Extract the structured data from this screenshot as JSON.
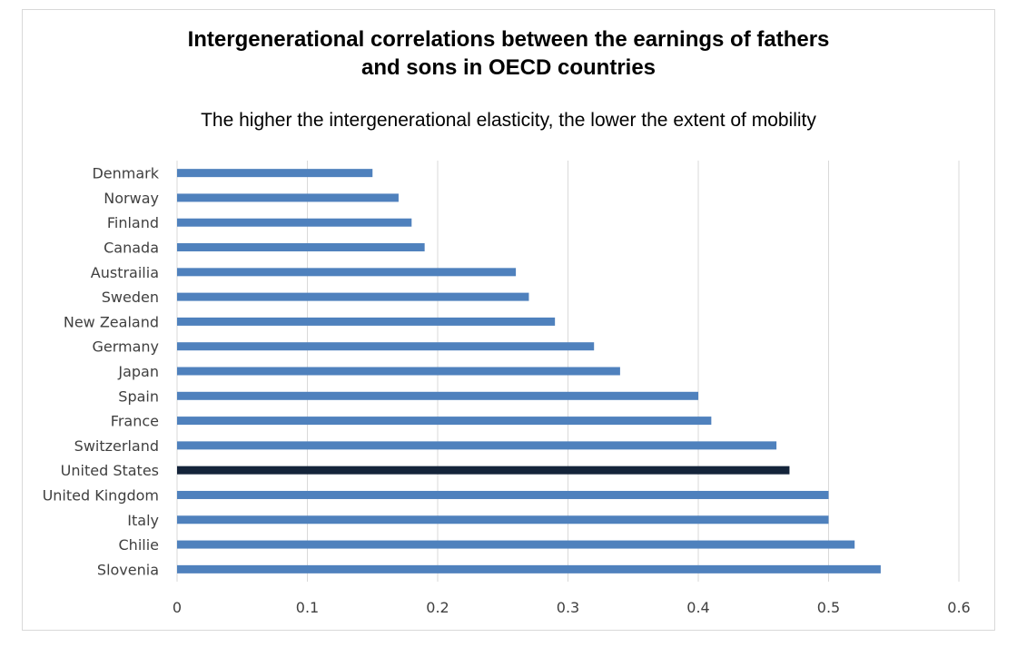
{
  "chart_data": {
    "type": "bar",
    "orientation": "horizontal",
    "title_line1": "Intergenerational correlations between the earnings of fathers",
    "title_line2": "and sons in OECD countries",
    "subtitle": "The higher the intergenerational elasticity, the lower the extent of mobility",
    "categories": [
      "Denmark",
      "Norway",
      "Finland",
      "Canada",
      "Austrailia",
      "Sweden",
      "New Zealand",
      "Germany",
      "Japan",
      "Spain",
      "France",
      "Switzerland",
      "United States",
      "United Kingdom",
      "Italy",
      "Chilie",
      "Slovenia"
    ],
    "values": [
      0.15,
      0.17,
      0.18,
      0.19,
      0.26,
      0.27,
      0.29,
      0.32,
      0.34,
      0.4,
      0.41,
      0.46,
      0.47,
      0.5,
      0.5,
      0.52,
      0.54
    ],
    "highlight": "United States",
    "xlim": [
      0,
      0.6
    ],
    "xticks": [
      "0",
      "0.1",
      "0.2",
      "0.3",
      "0.4",
      "0.5",
      "0.6"
    ],
    "grid": "vertical",
    "colors": {
      "bar": "#4f81bd",
      "highlight": "#14243a",
      "grid": "#d9d9d9",
      "text": "#404040"
    }
  }
}
